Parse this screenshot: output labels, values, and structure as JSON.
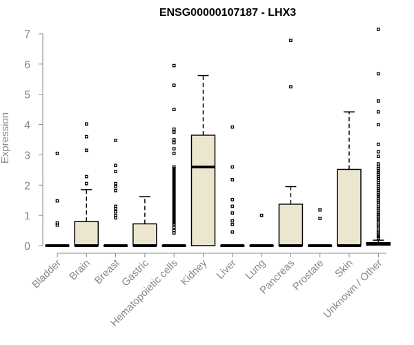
{
  "chart_data": {
    "type": "boxplot",
    "title": "ENSG00000107187 - LHX3",
    "xlabel": "",
    "ylabel": "Expression",
    "ylim": [
      0,
      7
    ],
    "yticks": [
      0,
      1,
      2,
      3,
      4,
      5,
      6,
      7
    ],
    "grid": false,
    "categories": [
      "Bladder",
      "Brain",
      "Breast",
      "Gastric",
      "Hematopoietic cells",
      "Kidney",
      "Liver",
      "Lung",
      "Pancreas",
      "Prostate",
      "Skin",
      "Unknown / Other"
    ],
    "boxes": [
      {
        "category": "Bladder",
        "q1": 0,
        "median": 0,
        "q3": 0,
        "whisker_low": 0,
        "whisker_high": 0,
        "outliers": [
          3.05,
          1.48,
          0.75,
          0.68
        ]
      },
      {
        "category": "Brain",
        "q1": 0,
        "median": 0,
        "q3": 0.8,
        "whisker_low": 0,
        "whisker_high": 1.85,
        "outliers": [
          4.02,
          3.6,
          3.15,
          2.28,
          2.05
        ]
      },
      {
        "category": "Breast",
        "q1": 0,
        "median": 0,
        "q3": 0,
        "whisker_low": 0,
        "whisker_high": 0,
        "outliers": [
          3.48,
          2.65,
          2.45,
          2.05,
          1.95,
          1.82,
          1.3,
          1.22,
          1.12,
          1.0,
          0.92
        ]
      },
      {
        "category": "Gastric",
        "q1": 0,
        "median": 0,
        "q3": 0.72,
        "whisker_low": 0,
        "whisker_high": 1.62,
        "outliers": []
      },
      {
        "category": "Hematopoietic cells",
        "q1": 0,
        "median": 0,
        "q3": 0,
        "whisker_low": 0,
        "whisker_high": 0,
        "outliers": [
          5.95,
          5.3,
          4.5,
          3.85,
          3.75,
          3.5,
          3.4,
          3.2,
          3.05,
          2.6,
          2.55,
          2.5,
          2.45,
          2.4,
          2.35,
          2.3,
          2.25,
          2.2,
          2.15,
          2.1,
          2.05,
          2.0,
          1.95,
          1.9,
          1.85,
          1.8,
          1.75,
          1.7,
          1.65,
          1.6,
          1.55,
          1.5,
          1.45,
          1.4,
          1.35,
          1.3,
          1.25,
          1.2,
          1.15,
          1.1,
          1.05,
          1.0,
          0.95,
          0.9,
          0.85,
          0.8,
          0.75,
          0.7,
          0.6,
          0.5,
          0.42
        ]
      },
      {
        "category": "Kidney",
        "q1": 0,
        "median": 2.6,
        "q3": 3.65,
        "whisker_low": 0,
        "whisker_high": 5.62,
        "outliers": []
      },
      {
        "category": "Liver",
        "q1": 0,
        "median": 0,
        "q3": 0,
        "whisker_low": 0,
        "whisker_high": 0,
        "outliers": [
          3.92,
          2.6,
          2.18,
          1.52,
          1.3,
          1.08,
          0.82,
          0.7,
          0.45
        ]
      },
      {
        "category": "Lung",
        "q1": 0,
        "median": 0,
        "q3": 0,
        "whisker_low": 0,
        "whisker_high": 0,
        "outliers": [
          1.0
        ]
      },
      {
        "category": "Pancreas",
        "q1": 0,
        "median": 0,
        "q3": 1.37,
        "whisker_low": 0,
        "whisker_high": 1.95,
        "outliers": [
          6.78,
          5.25
        ]
      },
      {
        "category": "Prostate",
        "q1": 0,
        "median": 0,
        "q3": 0,
        "whisker_low": 0,
        "whisker_high": 0,
        "outliers": [
          1.18,
          0.9
        ]
      },
      {
        "category": "Skin",
        "q1": 0,
        "median": 0,
        "q3": 2.52,
        "whisker_low": 0,
        "whisker_high": 4.42,
        "outliers": []
      },
      {
        "category": "Unknown / Other",
        "q1": 0.02,
        "median": 0.05,
        "q3": 0.1,
        "whisker_low": 0,
        "whisker_high": 0.18,
        "outliers": [
          7.15,
          5.68,
          4.78,
          4.42,
          4.0,
          3.35,
          3.1,
          2.95,
          2.7,
          2.62,
          2.55,
          2.48,
          2.42,
          2.35,
          2.28,
          2.22,
          2.15,
          2.08,
          2.02,
          1.95,
          1.88,
          1.82,
          1.75,
          1.68,
          1.62,
          1.55,
          1.48,
          1.42,
          1.35,
          1.28,
          1.22,
          1.15,
          1.08,
          1.02,
          0.95,
          0.88,
          0.82,
          0.75,
          0.68,
          0.62,
          0.55,
          0.48,
          0.42,
          0.35,
          0.3,
          0.25
        ]
      }
    ]
  }
}
